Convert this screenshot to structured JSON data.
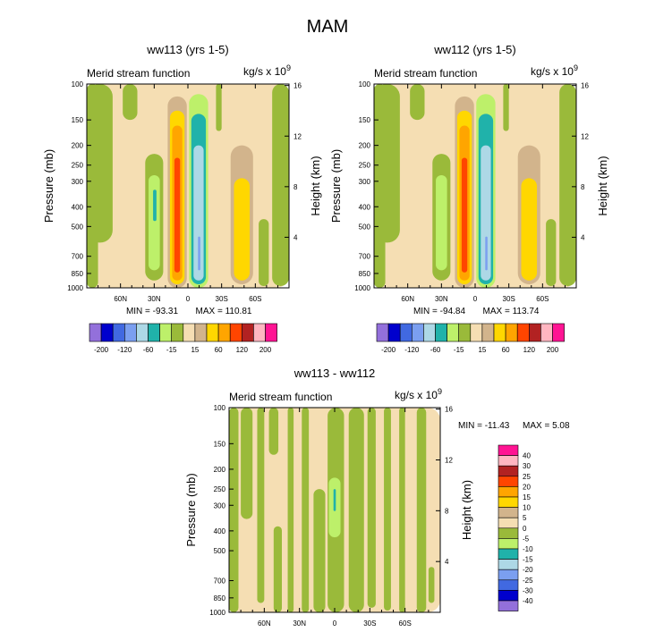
{
  "title": "MAM",
  "colors": {
    "violet": "#9370db",
    "darkblue": "#0000cd",
    "blue": "#4169e1",
    "cornflower": "#7b9ff0",
    "lightblue": "#add8e6",
    "teal": "#20b2aa",
    "lightgreen": "#bdf06a",
    "olive": "#9aba3a",
    "wheat": "#f5deb3",
    "tan": "#d2b48c",
    "gold": "#ffd700",
    "orange": "#ffa500",
    "orangered": "#ff4500",
    "firebrick": "#b22222",
    "pink": "#ffb6c1",
    "magenta": "#ff1493",
    "line": "#000000"
  },
  "chart_data": [
    {
      "type": "heatmap",
      "title": "ww113 (yrs 1-5)",
      "left_label": "Merid stream function",
      "right_label": "kg/s x 10",
      "right_label_sup": "9",
      "ylabel": "Pressure (mb)",
      "ylabel_right": "Height (km)",
      "x_ticks": [
        "60N",
        "30N",
        "0",
        "30S",
        "60S"
      ],
      "x_tick_values": [
        60,
        30,
        0,
        -30,
        -60
      ],
      "xlim": [
        90,
        -90
      ],
      "y_ticks": [
        "100",
        "150",
        "200",
        "250",
        "300",
        "400",
        "500",
        "700",
        "850",
        "1000"
      ],
      "y_tick_values": [
        100,
        150,
        200,
        250,
        300,
        400,
        500,
        700,
        850,
        1000
      ],
      "ylim": [
        100,
        1000
      ],
      "height_ticks": [
        "16",
        "12",
        "8",
        "4"
      ],
      "height_tick_values": [
        16,
        12,
        8,
        4
      ],
      "min_text": "MIN = -93.31",
      "max_text": "MAX = 110.81",
      "min": -93.31,
      "max": 110.81,
      "cells": [
        {
          "lat": [
            90,
            -90
          ],
          "p": [
            100,
            1000
          ],
          "color": "wheat"
        },
        {
          "lat": [
            90,
            67
          ],
          "p": [
            100,
            600
          ],
          "color": "olive"
        },
        {
          "lat": [
            90,
            80
          ],
          "p": [
            100,
            1000
          ],
          "color": "olive"
        },
        {
          "lat": [
            58,
            45
          ],
          "p": [
            100,
            150
          ],
          "color": "olive"
        },
        {
          "lat": [
            38,
            22
          ],
          "p": [
            220,
            920
          ],
          "color": "olive"
        },
        {
          "lat": [
            35,
            25
          ],
          "p": [
            280,
            820
          ],
          "color": "lightgreen"
        },
        {
          "lat": [
            31,
            28
          ],
          "p": [
            330,
            470
          ],
          "color": "teal"
        },
        {
          "lat": [
            18,
            1
          ],
          "p": [
            115,
            1000
          ],
          "color": "tan"
        },
        {
          "lat": [
            16,
            3
          ],
          "p": [
            135,
            960
          ],
          "color": "gold"
        },
        {
          "lat": [
            14,
            5
          ],
          "p": [
            160,
            920
          ],
          "color": "orange"
        },
        {
          "lat": [
            12,
            7
          ],
          "p": [
            230,
            840
          ],
          "color": "orangered"
        },
        {
          "lat": [
            -1,
            -18
          ],
          "p": [
            112,
            1000
          ],
          "color": "lightgreen"
        },
        {
          "lat": [
            -3,
            -16
          ],
          "p": [
            140,
            960
          ],
          "color": "teal"
        },
        {
          "lat": [
            -5,
            -14
          ],
          "p": [
            200,
            920
          ],
          "color": "lightblue"
        },
        {
          "lat": [
            -9,
            -11
          ],
          "p": [
            560,
            820
          ],
          "color": "cornflower"
        },
        {
          "lat": [
            -25,
            -30
          ],
          "p": [
            100,
            170
          ],
          "color": "olive"
        },
        {
          "lat": [
            -38,
            -58
          ],
          "p": [
            200,
            960
          ],
          "color": "tan"
        },
        {
          "lat": [
            -41,
            -55
          ],
          "p": [
            290,
            920
          ],
          "color": "gold"
        },
        {
          "lat": [
            -63,
            -72
          ],
          "p": [
            460,
            980
          ],
          "color": "olive"
        },
        {
          "lat": [
            -75,
            -90
          ],
          "p": [
            100,
            980
          ],
          "color": "olive"
        }
      ]
    },
    {
      "type": "heatmap",
      "title": "ww112 (yrs 1-5)",
      "left_label": "Merid stream function",
      "right_label": "kg/s x 10",
      "right_label_sup": "9",
      "ylabel": "Pressure (mb)",
      "ylabel_right": "Height (km)",
      "x_ticks": [
        "60N",
        "30N",
        "0",
        "30S",
        "60S"
      ],
      "x_tick_values": [
        60,
        30,
        0,
        -30,
        -60
      ],
      "xlim": [
        90,
        -90
      ],
      "y_ticks": [
        "100",
        "150",
        "200",
        "250",
        "300",
        "400",
        "500",
        "700",
        "850",
        "1000"
      ],
      "y_tick_values": [
        100,
        150,
        200,
        250,
        300,
        400,
        500,
        700,
        850,
        1000
      ],
      "ylim": [
        100,
        1000
      ],
      "height_ticks": [
        "16",
        "12",
        "8",
        "4"
      ],
      "height_tick_values": [
        16,
        12,
        8,
        4
      ],
      "min_text": "MIN = -94.84",
      "max_text": "MAX = 113.74",
      "min": -94.84,
      "max": 113.74,
      "cells": [
        {
          "lat": [
            90,
            -90
          ],
          "p": [
            100,
            1000
          ],
          "color": "wheat"
        },
        {
          "lat": [
            90,
            67
          ],
          "p": [
            100,
            600
          ],
          "color": "olive"
        },
        {
          "lat": [
            90,
            80
          ],
          "p": [
            100,
            1000
          ],
          "color": "olive"
        },
        {
          "lat": [
            58,
            45
          ],
          "p": [
            100,
            150
          ],
          "color": "olive"
        },
        {
          "lat": [
            38,
            22
          ],
          "p": [
            220,
            920
          ],
          "color": "olive"
        },
        {
          "lat": [
            35,
            25
          ],
          "p": [
            280,
            820
          ],
          "color": "lightgreen"
        },
        {
          "lat": [
            18,
            1
          ],
          "p": [
            115,
            1000
          ],
          "color": "tan"
        },
        {
          "lat": [
            16,
            3
          ],
          "p": [
            135,
            960
          ],
          "color": "gold"
        },
        {
          "lat": [
            14,
            5
          ],
          "p": [
            160,
            920
          ],
          "color": "orange"
        },
        {
          "lat": [
            12,
            7
          ],
          "p": [
            230,
            840
          ],
          "color": "orangered"
        },
        {
          "lat": [
            -1,
            -18
          ],
          "p": [
            112,
            1000
          ],
          "color": "lightgreen"
        },
        {
          "lat": [
            -3,
            -16
          ],
          "p": [
            140,
            960
          ],
          "color": "teal"
        },
        {
          "lat": [
            -5,
            -14
          ],
          "p": [
            200,
            920
          ],
          "color": "lightblue"
        },
        {
          "lat": [
            -9,
            -11
          ],
          "p": [
            560,
            820
          ],
          "color": "cornflower"
        },
        {
          "lat": [
            -25,
            -30
          ],
          "p": [
            100,
            170
          ],
          "color": "olive"
        },
        {
          "lat": [
            -38,
            -58
          ],
          "p": [
            200,
            960
          ],
          "color": "tan"
        },
        {
          "lat": [
            -41,
            -55
          ],
          "p": [
            290,
            920
          ],
          "color": "gold"
        },
        {
          "lat": [
            -63,
            -72
          ],
          "p": [
            460,
            980
          ],
          "color": "olive"
        },
        {
          "lat": [
            -75,
            -90
          ],
          "p": [
            100,
            980
          ],
          "color": "olive"
        }
      ]
    },
    {
      "type": "heatmap",
      "title": "ww113 - ww112",
      "left_label": "Merid stream function",
      "right_label": "kg/s x 10",
      "right_label_sup": "9",
      "ylabel": "Pressure (mb)",
      "ylabel_right": "Height (km)",
      "x_ticks": [
        "60N",
        "30N",
        "0",
        "30S",
        "60S"
      ],
      "x_tick_values": [
        60,
        30,
        0,
        -30,
        -60
      ],
      "xlim": [
        90,
        -90
      ],
      "y_ticks": [
        "100",
        "150",
        "200",
        "250",
        "300",
        "400",
        "500",
        "700",
        "850",
        "1000"
      ],
      "y_tick_values": [
        100,
        150,
        200,
        250,
        300,
        400,
        500,
        700,
        850,
        1000
      ],
      "ylim": [
        100,
        1000
      ],
      "height_ticks": [
        "16",
        "12",
        "8",
        "4"
      ],
      "height_tick_values": [
        16,
        12,
        8,
        4
      ],
      "min_text": "MIN = -11.43",
      "max_text": "MAX =   5.08",
      "min": -11.43,
      "max": 5.08,
      "cells": [
        {
          "lat": [
            90,
            -90
          ],
          "p": [
            100,
            1000
          ],
          "color": "wheat"
        },
        {
          "lat": [
            90,
            82
          ],
          "p": [
            100,
            1000
          ],
          "color": "olive"
        },
        {
          "lat": [
            80,
            70
          ],
          "p": [
            100,
            350
          ],
          "color": "olive"
        },
        {
          "lat": [
            66,
            60
          ],
          "p": [
            100,
            900
          ],
          "color": "olive"
        },
        {
          "lat": [
            56,
            48
          ],
          "p": [
            100,
            170
          ],
          "color": "olive"
        },
        {
          "lat": [
            52,
            45
          ],
          "p": [
            380,
            1000
          ],
          "color": "olive"
        },
        {
          "lat": [
            40,
            35
          ],
          "p": [
            100,
            1000
          ],
          "color": "olive"
        },
        {
          "lat": [
            28,
            22
          ],
          "p": [
            100,
            1000
          ],
          "color": "olive"
        },
        {
          "lat": [
            18,
            8
          ],
          "p": [
            250,
            1000
          ],
          "color": "olive"
        },
        {
          "lat": [
            6,
            -8
          ],
          "p": [
            100,
            1000
          ],
          "color": "olive"
        },
        {
          "lat": [
            5,
            -5
          ],
          "p": [
            220,
            430
          ],
          "color": "lightgreen"
        },
        {
          "lat": [
            1,
            -1
          ],
          "p": [
            250,
            320
          ],
          "color": "teal"
        },
        {
          "lat": [
            -12,
            -25
          ],
          "p": [
            100,
            1000
          ],
          "color": "olive"
        },
        {
          "lat": [
            -28,
            -35
          ],
          "p": [
            100,
            950
          ],
          "color": "olive"
        },
        {
          "lat": [
            -42,
            -48
          ],
          "p": [
            100,
            980
          ],
          "color": "olive"
        },
        {
          "lat": [
            -55,
            -60
          ],
          "p": [
            100,
            1000
          ],
          "color": "olive"
        },
        {
          "lat": [
            -70,
            -78
          ],
          "p": [
            100,
            1000
          ],
          "color": "olive"
        },
        {
          "lat": [
            -80,
            -85
          ],
          "p": [
            600,
            900
          ],
          "color": "olive"
        }
      ]
    }
  ],
  "colorbar_small": {
    "colors": [
      "violet",
      "darkblue",
      "blue",
      "cornflower",
      "lightblue",
      "teal",
      "lightgreen",
      "olive",
      "wheat",
      "tan",
      "gold",
      "orange",
      "orangered",
      "firebrick",
      "pink",
      "magenta"
    ],
    "labels": [
      "-200",
      "-120",
      "-60",
      "-15",
      "15",
      "60",
      "120",
      "200"
    ]
  },
  "colorbar_diff": {
    "colors": [
      "magenta",
      "pink",
      "firebrick",
      "orangered",
      "orange",
      "gold",
      "tan",
      "wheat",
      "olive",
      "lightgreen",
      "teal",
      "lightblue",
      "cornflower",
      "blue",
      "darkblue",
      "violet"
    ],
    "labels": [
      "40",
      "30",
      "25",
      "20",
      "15",
      "10",
      "5",
      "0",
      "-5",
      "-10",
      "-15",
      "-20",
      "-25",
      "-30",
      "-40"
    ]
  }
}
